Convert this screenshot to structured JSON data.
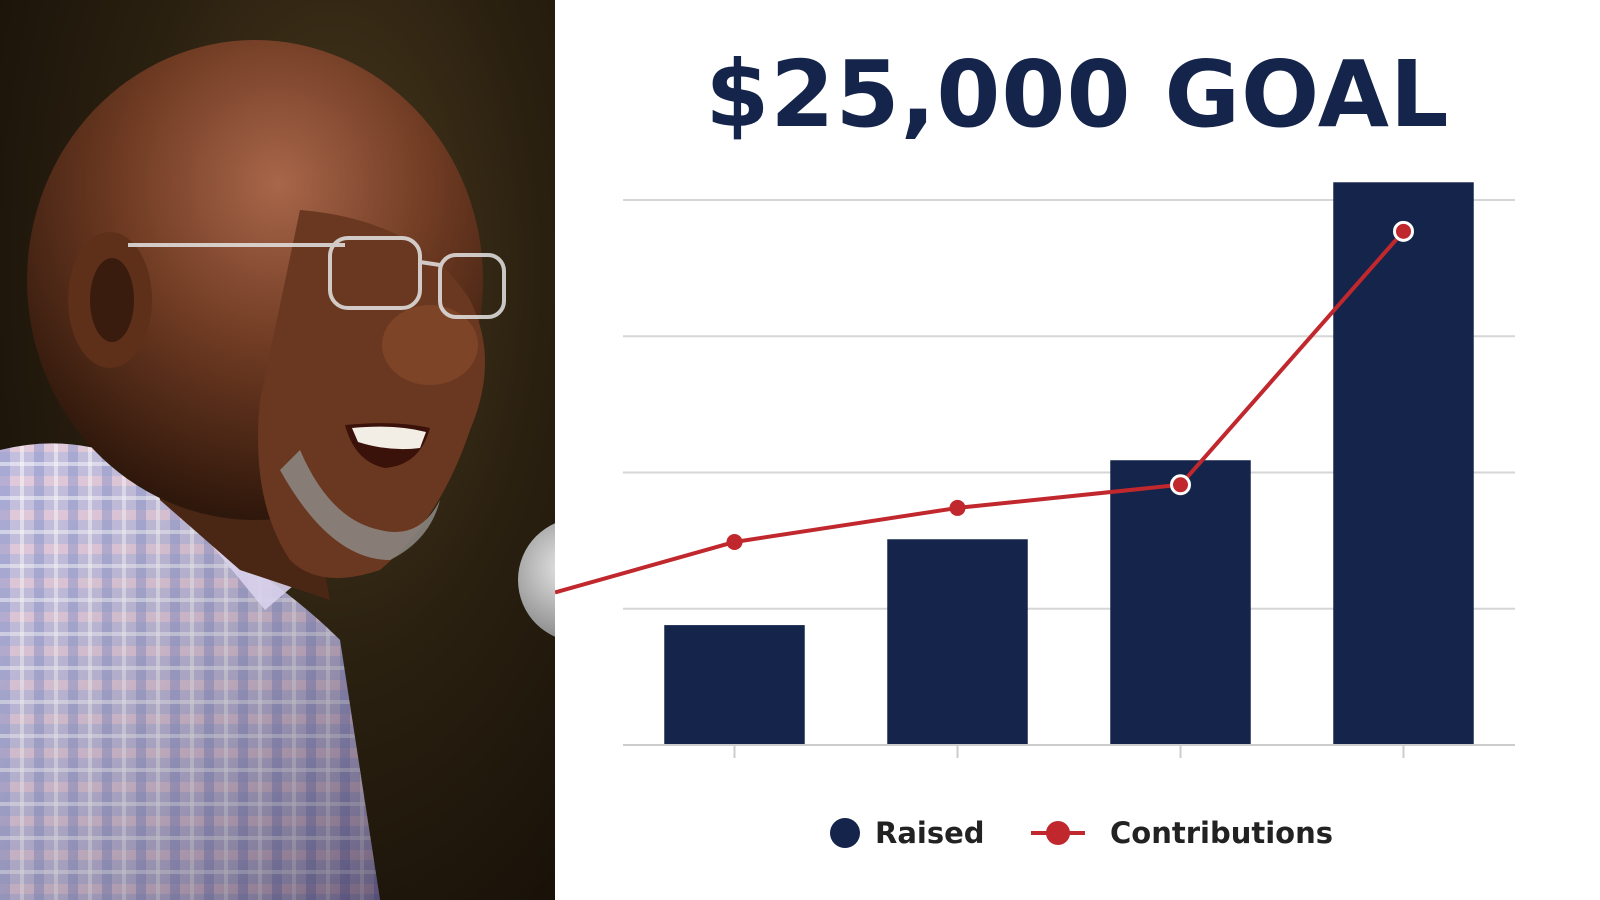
{
  "chart_data": {
    "type": "bar",
    "title": "$25,000 GOAL",
    "xlabel": "",
    "ylabel": "",
    "categories": [
      "",
      "",
      "",
      ""
    ],
    "series": [
      {
        "name": "Raised",
        "type": "bar",
        "values": [
          8.8,
          15.1,
          20.9,
          41.3
        ],
        "color": "#14244a"
      },
      {
        "name": "Contributions",
        "type": "line",
        "values": [
          14.9,
          17.4,
          19.1,
          37.7
        ],
        "color": "#c0282d"
      }
    ],
    "line_start_value": 11.2,
    "ylim": [
      0,
      40
    ],
    "grid": true,
    "y_ticks_labeled": false,
    "legend_position": "bottom-center"
  },
  "colors": {
    "accent_navy": "#14244a",
    "accent_red": "#c0282d",
    "gridline": "#d6d6d6"
  }
}
